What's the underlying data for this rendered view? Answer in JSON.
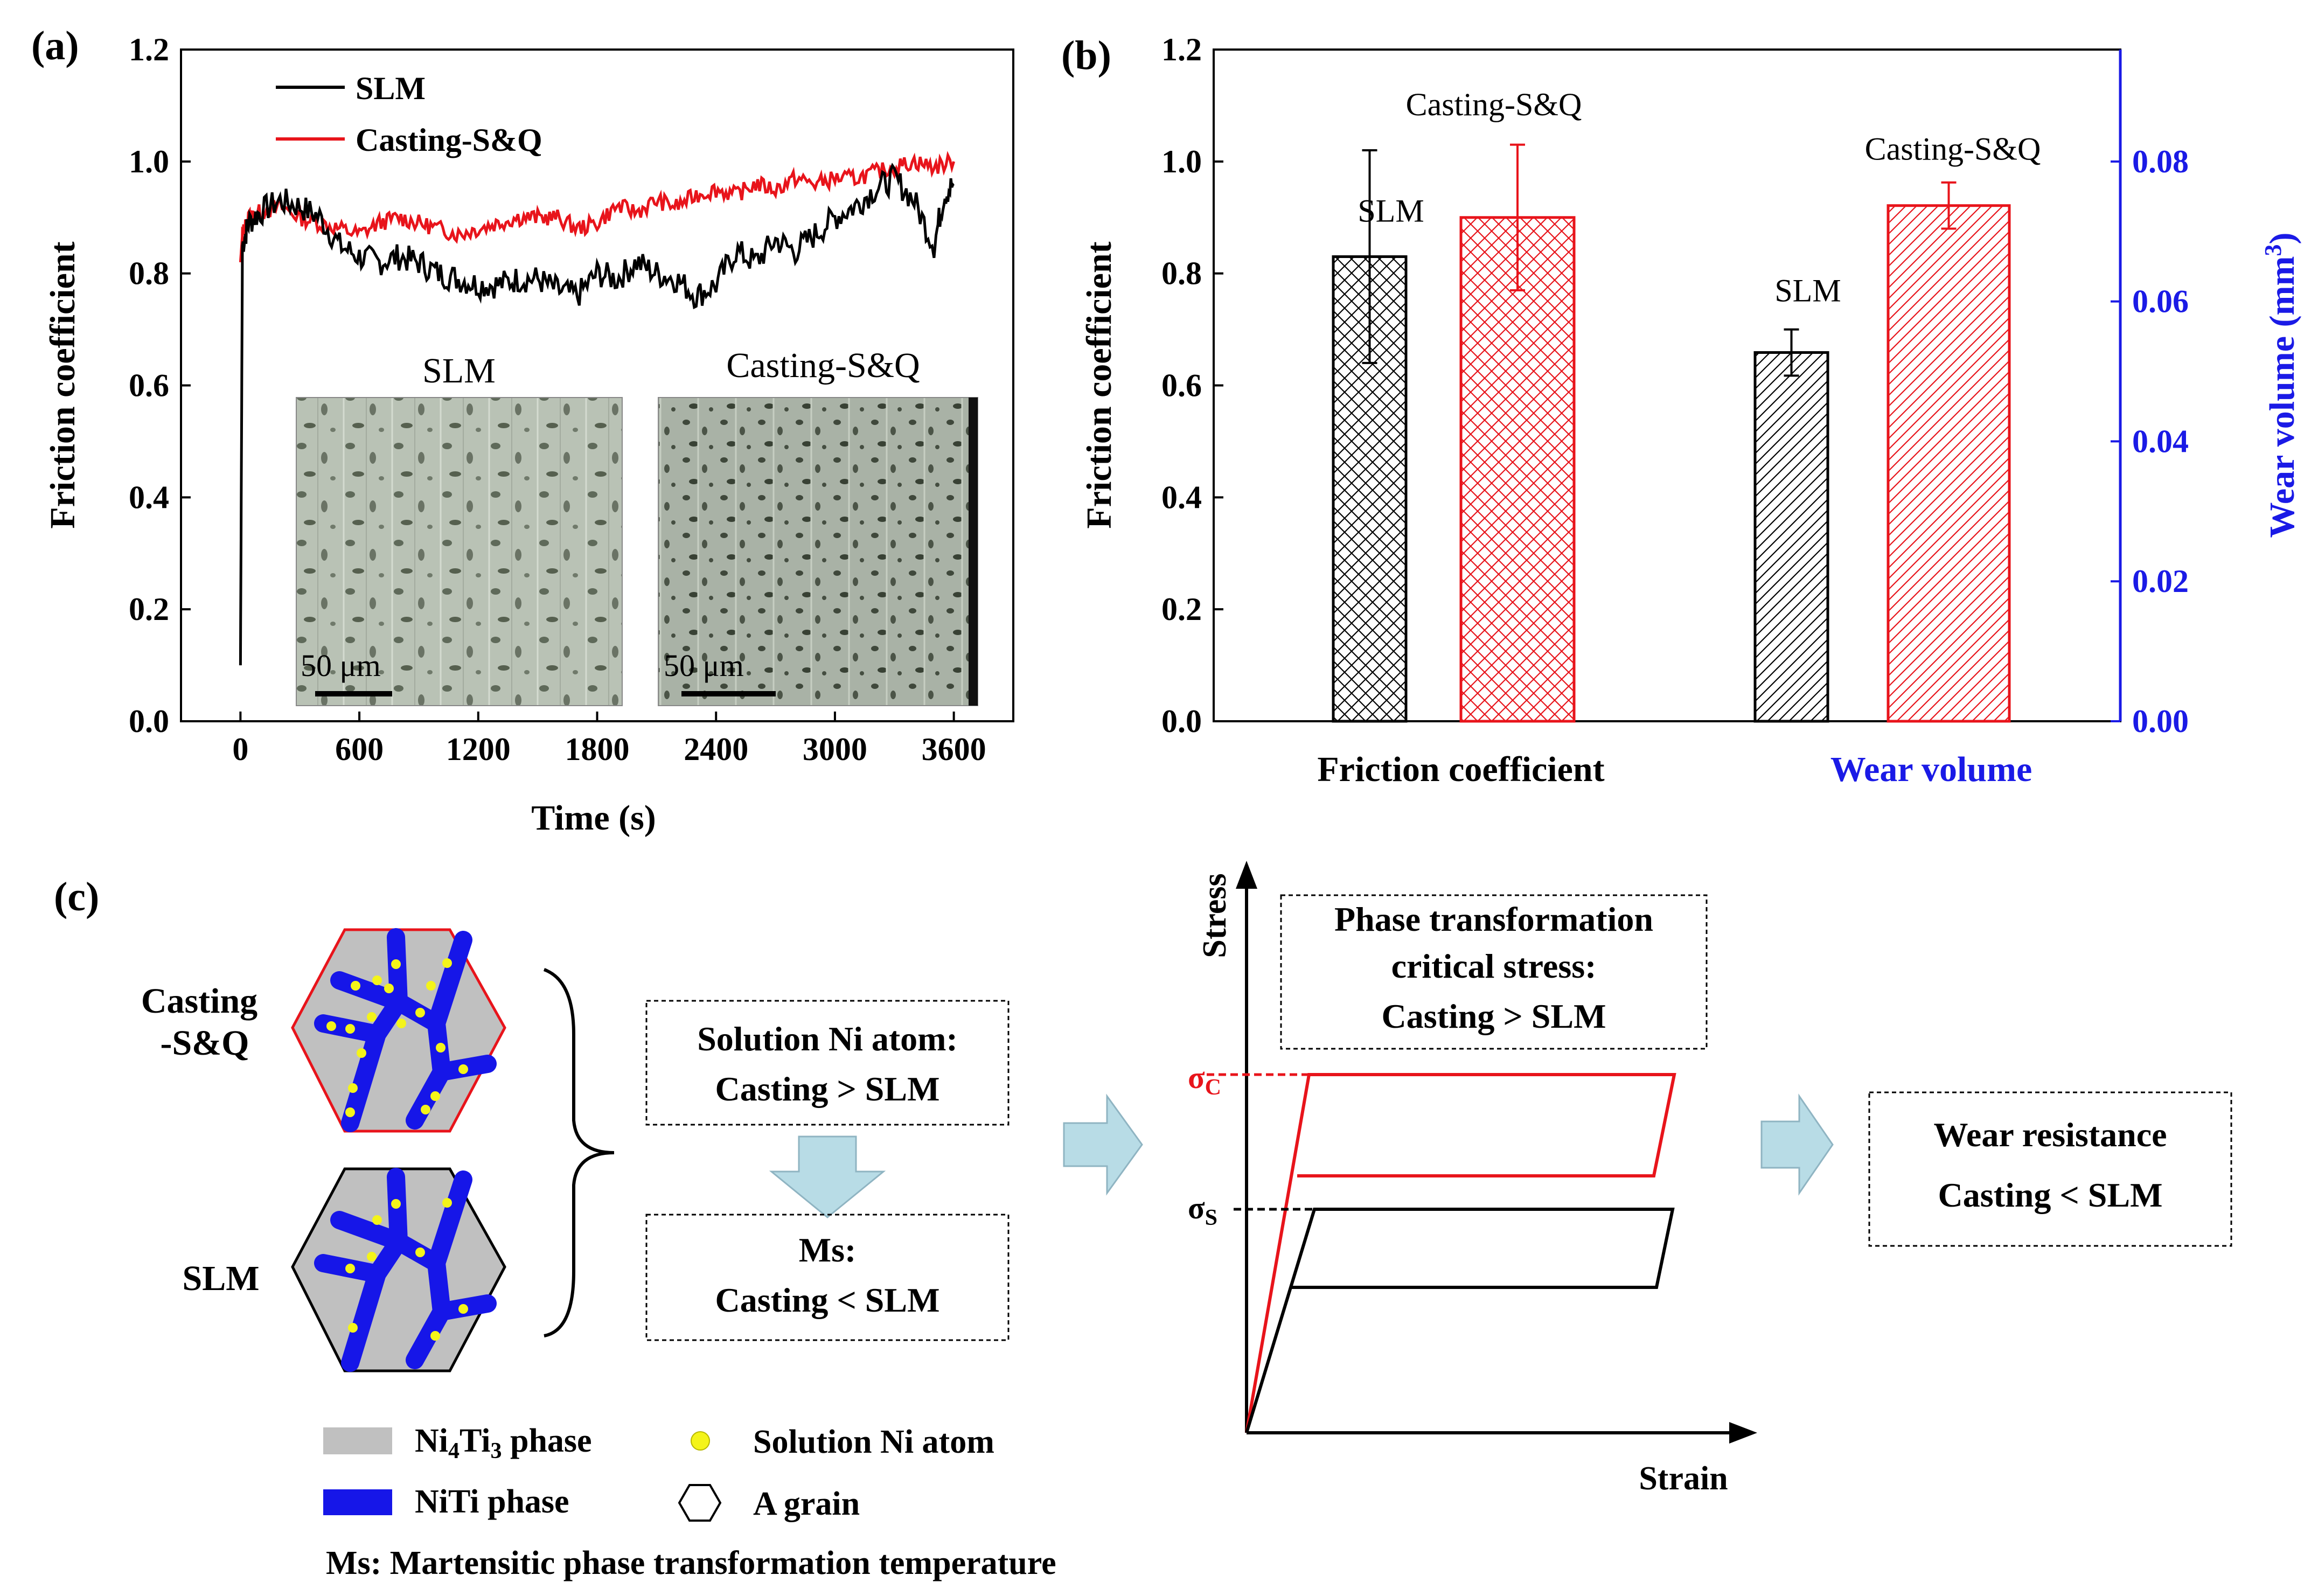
{
  "colors": {
    "slm": "#000000",
    "casting": "#e8141b",
    "wear_axis": "#1a1ae6",
    "niti_phase": "#1616e8",
    "ni4ti3_phase": "#c0c0c0",
    "ni_atom": "#f4f41a",
    "arrow_fill": "#b8dce6"
  },
  "chart_data": [
    {
      "panel": "(a)",
      "type": "line",
      "xlabel": "Time (s)",
      "ylabel": "Friction coefficient",
      "xlim": [
        -300,
        3900
      ],
      "ylim": [
        0,
        1.2
      ],
      "xticks": [
        0,
        600,
        1200,
        1800,
        2400,
        3000,
        3600
      ],
      "yticks": [
        0.0,
        0.2,
        0.4,
        0.6,
        0.8,
        1.0,
        1.2
      ],
      "legend": [
        "SLM",
        "Casting-S&Q"
      ],
      "series": [
        {
          "name": "SLM",
          "x": [
            0,
            10,
            40,
            100,
            200,
            300,
            400,
            500,
            600,
            700,
            800,
            900,
            1000,
            1100,
            1200,
            1300,
            1400,
            1500,
            1600,
            1700,
            1800,
            1900,
            2000,
            2100,
            2200,
            2300,
            2400,
            2500,
            2600,
            2700,
            2800,
            2900,
            3000,
            3100,
            3200,
            3300,
            3400,
            3500,
            3550,
            3600
          ],
          "y": [
            0.1,
            0.85,
            0.89,
            0.91,
            0.93,
            0.92,
            0.9,
            0.85,
            0.83,
            0.82,
            0.83,
            0.82,
            0.8,
            0.79,
            0.78,
            0.78,
            0.79,
            0.79,
            0.77,
            0.76,
            0.8,
            0.79,
            0.82,
            0.8,
            0.79,
            0.76,
            0.78,
            0.84,
            0.82,
            0.86,
            0.84,
            0.87,
            0.9,
            0.92,
            0.95,
            0.97,
            0.93,
            0.85,
            0.94,
            0.96
          ]
        },
        {
          "name": "Casting-S&Q",
          "x": [
            0,
            10,
            40,
            100,
            200,
            300,
            400,
            500,
            600,
            700,
            800,
            900,
            1000,
            1100,
            1200,
            1300,
            1400,
            1500,
            1600,
            1700,
            1800,
            1900,
            2000,
            2100,
            2200,
            2300,
            2400,
            2500,
            2600,
            2700,
            2800,
            2900,
            3000,
            3100,
            3200,
            3300,
            3400,
            3500,
            3600
          ],
          "y": [
            0.82,
            0.87,
            0.9,
            0.91,
            0.92,
            0.9,
            0.89,
            0.88,
            0.87,
            0.89,
            0.9,
            0.89,
            0.88,
            0.87,
            0.88,
            0.89,
            0.9,
            0.9,
            0.9,
            0.88,
            0.89,
            0.92,
            0.91,
            0.93,
            0.92,
            0.94,
            0.95,
            0.94,
            0.96,
            0.95,
            0.97,
            0.96,
            0.97,
            0.97,
            0.98,
            0.99,
            1.0,
            0.99,
            1.0
          ]
        }
      ],
      "inset": {
        "left_label": "SLM",
        "right_label": "Casting-S&Q",
        "scale_bar": "50 μm"
      }
    },
    {
      "panel": "(b)",
      "type": "bar",
      "ylabel": "Friction coefficient",
      "y2label": "Wear volume (mm",
      "y2label_sup": "3",
      "y2label_close": ")",
      "ylim": [
        0,
        1.2
      ],
      "y2lim": [
        0,
        0.096
      ],
      "yticks": [
        0.0,
        0.2,
        0.4,
        0.6,
        0.8,
        1.0,
        1.2
      ],
      "y2ticks": [
        0.0,
        0.02,
        0.04,
        0.06,
        0.08
      ],
      "categories": [
        "Friction coefficient",
        "Wear volume"
      ],
      "groups": [
        {
          "category": "Friction coefficient",
          "axis": "left",
          "bars": [
            {
              "name": "SLM",
              "value": 0.83,
              "err": 0.19
            },
            {
              "name": "Casting-S&Q",
              "value": 0.9,
              "err": 0.13
            }
          ]
        },
        {
          "category": "Wear volume",
          "axis": "right",
          "bars": [
            {
              "name": "SLM",
              "value": 0.0527,
              "err": 0.0033
            },
            {
              "name": "Casting-S&Q",
              "value": 0.0737,
              "err": 0.0033
            }
          ]
        }
      ]
    },
    {
      "panel": "(c)",
      "type": "line",
      "xlabel": "Strain",
      "ylabel": "Stress",
      "series": [
        {
          "name": "Casting",
          "label": "σ",
          "label_sub": "C"
        },
        {
          "name": "SLM",
          "label": "σ",
          "label_sub": "S"
        }
      ]
    }
  ],
  "panel_c": {
    "label": "(c)",
    "grain_casting_label_1": "Casting",
    "grain_casting_label_2": "-S&Q",
    "grain_slm_label": "SLM",
    "box1_line1": "Solution Ni atom:",
    "box1_line2": "Casting > SLM",
    "box2_line1": "Ms:",
    "box2_line2": "Casting < SLM",
    "box3_line1": "Phase transformation",
    "box3_line2": "critical stress:",
    "box3_line3": "Casting > SLM",
    "box4_line1": "Wear resistance",
    "box4_line2": "Casting < SLM",
    "legend_ni4ti3": "Ni",
    "legend_ni4ti3_sub1": "4",
    "legend_ni4ti3_mid": "Ti",
    "legend_ni4ti3_sub2": "3",
    "legend_ni4ti3_tail": " phase",
    "legend_niti": "NiTi phase",
    "legend_ni_atom": "Solution Ni atom",
    "legend_grain": "A grain",
    "legend_ms": "Ms: Martensitic phase transformation temperature"
  },
  "panel_labels": {
    "a": "(a)",
    "b": "(b)"
  }
}
